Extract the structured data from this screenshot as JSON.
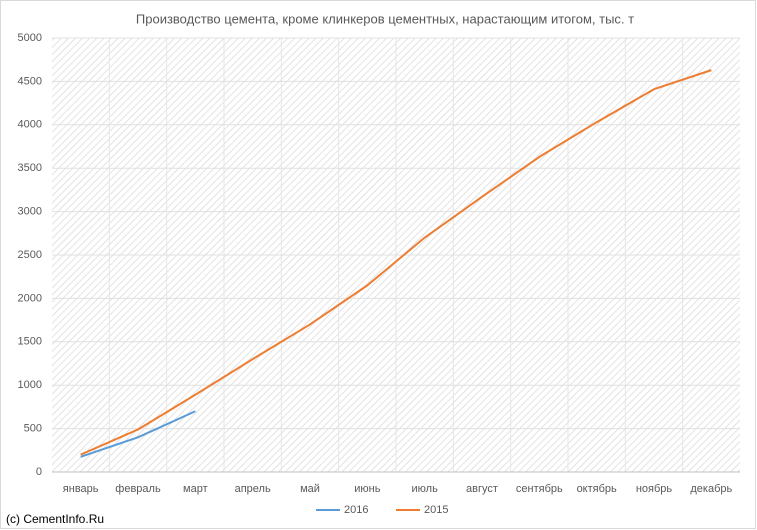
{
  "chart_data": {
    "type": "line",
    "title": "Производство цемента, кроме клинкеров цементных, нарастающим итогом, тыс. т",
    "categories": [
      "январь",
      "февраль",
      "март",
      "апрель",
      "май",
      "июнь",
      "июль",
      "август",
      "сентябрь",
      "октябрь",
      "ноябрь",
      "декабрь"
    ],
    "series": [
      {
        "name": "2016",
        "color": "#5b9bd5",
        "values": [
          175,
          400,
          700,
          null,
          null,
          null,
          null,
          null,
          null,
          null,
          null,
          null
        ]
      },
      {
        "name": "2015",
        "color": "#ed7d31",
        "values": [
          200,
          490,
          890,
          1300,
          1700,
          2150,
          2700,
          3170,
          3630,
          4030,
          4410,
          4630
        ]
      }
    ],
    "ylim": [
      0,
      5000
    ],
    "yticks": [
      0,
      500,
      1000,
      1500,
      2000,
      2500,
      3000,
      3500,
      4000,
      4500,
      5000
    ],
    "grid": true,
    "legend": "bottom",
    "source": "(c) CementInfo.Ru"
  }
}
